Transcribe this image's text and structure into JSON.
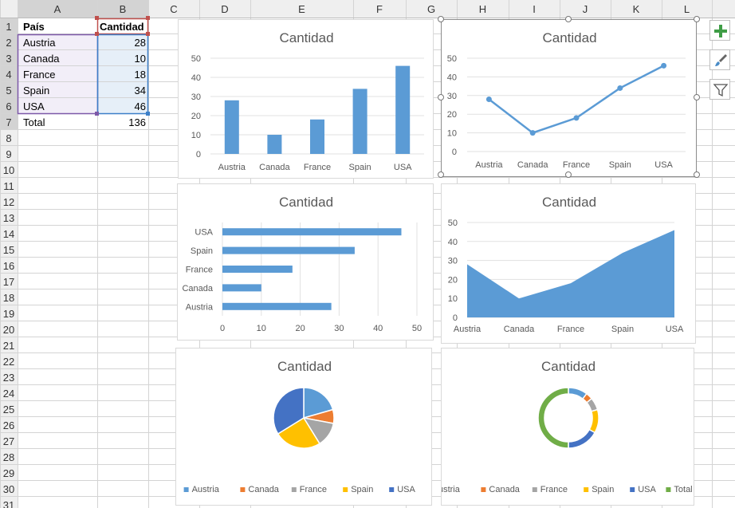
{
  "sheet": {
    "columns": [
      "A",
      "B",
      "C",
      "D",
      "E",
      "F",
      "G",
      "H",
      "I",
      "J",
      "K",
      "L"
    ],
    "rows": [
      "1",
      "2",
      "3",
      "4",
      "5",
      "6",
      "7",
      "8",
      "9",
      "10",
      "11",
      "12",
      "13",
      "14",
      "15",
      "16",
      "17",
      "18",
      "19",
      "20",
      "21",
      "22",
      "23",
      "24",
      "25",
      "26",
      "27",
      "28",
      "29",
      "30",
      "31"
    ],
    "header_label": "País",
    "value_header": "Cantidad",
    "data": [
      {
        "pais": "Austria",
        "cantidad": "28"
      },
      {
        "pais": "Canada",
        "cantidad": "10"
      },
      {
        "pais": "France",
        "cantidad": "18"
      },
      {
        "pais": "Spain",
        "cantidad": "34"
      },
      {
        "pais": "USA",
        "cantidad": "46"
      }
    ],
    "total_label": "Total",
    "total_value": "136"
  },
  "chart_data": [
    {
      "type": "bar",
      "title": "Cantidad",
      "categories": [
        "Austria",
        "Canada",
        "France",
        "Spain",
        "USA"
      ],
      "values": [
        28,
        10,
        18,
        34,
        46
      ],
      "ylim": [
        0,
        50
      ],
      "yticks": [
        "0",
        "10",
        "20",
        "30",
        "40",
        "50"
      ],
      "grid": true
    },
    {
      "type": "line",
      "title": "Cantidad",
      "categories": [
        "Austria",
        "Canada",
        "France",
        "Spain",
        "USA"
      ],
      "values": [
        28,
        10,
        18,
        34,
        46
      ],
      "ylim": [
        0,
        50
      ],
      "yticks": [
        "0",
        "10",
        "20",
        "30",
        "40",
        "50"
      ],
      "grid": true
    },
    {
      "type": "bar",
      "orientation": "horizontal",
      "title": "Cantidad",
      "categories": [
        "Austria",
        "Canada",
        "France",
        "Spain",
        "USA"
      ],
      "values": [
        28,
        10,
        18,
        34,
        46
      ],
      "xlim": [
        0,
        50
      ],
      "xticks": [
        "0",
        "10",
        "20",
        "30",
        "40",
        "50"
      ],
      "grid": true
    },
    {
      "type": "area",
      "title": "Cantidad",
      "categories": [
        "Austria",
        "Canada",
        "France",
        "Spain",
        "USA"
      ],
      "values": [
        28,
        10,
        18,
        34,
        46
      ],
      "ylim": [
        0,
        50
      ],
      "yticks": [
        "0",
        "10",
        "20",
        "30",
        "40",
        "50"
      ],
      "grid": true
    },
    {
      "type": "pie",
      "title": "Cantidad",
      "categories": [
        "Austria",
        "Canada",
        "France",
        "Spain",
        "USA"
      ],
      "values": [
        28,
        10,
        18,
        34,
        46
      ],
      "legend": "bottom"
    },
    {
      "type": "pie",
      "variant": "doughnut",
      "title": "Cantidad",
      "categories": [
        "Austria",
        "Canada",
        "France",
        "Spain",
        "USA",
        "Total"
      ],
      "values": [
        28,
        10,
        18,
        34,
        46,
        136
      ],
      "legend": "bottom"
    }
  ],
  "colors": {
    "series": "#5b9bd5",
    "pie": [
      "#5b9bd5",
      "#ed7d31",
      "#a5a5a5",
      "#ffc000",
      "#4472c4",
      "#70ad47"
    ],
    "gridline": "#e1e1e1",
    "header_bg": "#efefef",
    "header_active_bg": "#d3d3d3",
    "label_range_fill": "#f2eef8",
    "value_range_fill": "#e6eff8",
    "label_range_border": "#7d59a8",
    "value_range_border": "#3c7fc8",
    "header_range_border": "#c0504d",
    "plus_icon": "#3f9d46"
  },
  "side_buttons": [
    {
      "icon": "plus-icon"
    },
    {
      "icon": "brush-icon"
    },
    {
      "icon": "filter-icon"
    }
  ]
}
